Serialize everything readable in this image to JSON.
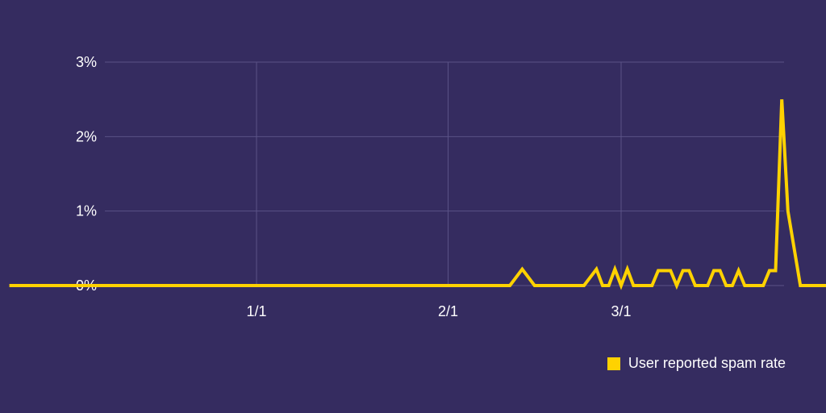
{
  "chart_data": {
    "type": "line",
    "title": "",
    "xlabel": "",
    "ylabel": "",
    "ylim": [
      0,
      3
    ],
    "y_ticks": [
      {
        "value": 0,
        "label": "0%"
      },
      {
        "value": 1,
        "label": "1%"
      },
      {
        "value": 2,
        "label": "2%"
      },
      {
        "value": 3,
        "label": "3%"
      }
    ],
    "x_ticks": [
      {
        "date": "1/1",
        "label": "1/1"
      },
      {
        "date": "2/1",
        "label": "2/1"
      },
      {
        "date": "3/1",
        "label": "3/1"
      }
    ],
    "grid": true,
    "legend": "bottom-right",
    "series": [
      {
        "name": "User reported spam rate",
        "color": "#ffd200",
        "x": [
          "11/22",
          "11/30",
          "12/10",
          "12/20",
          "12/31",
          "1/10",
          "1/20",
          "1/31",
          "2/8",
          "2/11",
          "2/13",
          "2/15",
          "2/21",
          "2/23",
          "2/25",
          "2/26",
          "2/27",
          "2/28",
          "3/1",
          "3/2",
          "3/3",
          "3/4",
          "3/5",
          "3/6",
          "3/7",
          "3/8",
          "3/9",
          "3/10",
          "3/11",
          "3/12",
          "3/13",
          "3/14",
          "3/15",
          "3/16",
          "3/17",
          "3/18",
          "3/19",
          "3/20",
          "3/21",
          "3/22",
          "3/23",
          "3/24",
          "3/25",
          "3/26",
          "3/27",
          "3/28",
          "3/30",
          "4/5",
          "4/8"
        ],
        "values": [
          0,
          0,
          0,
          0,
          0,
          0,
          0,
          0,
          0,
          0,
          0.22,
          0,
          0,
          0,
          0.22,
          0,
          0,
          0.22,
          0,
          0.22,
          0,
          0,
          0,
          0,
          0.2,
          0.2,
          0.2,
          0,
          0.2,
          0.2,
          0,
          0,
          0,
          0.2,
          0.2,
          0,
          0,
          0.2,
          0,
          0,
          0,
          0,
          0.2,
          0.2,
          2.5,
          1.0,
          0,
          0,
          0
        ]
      }
    ]
  }
}
